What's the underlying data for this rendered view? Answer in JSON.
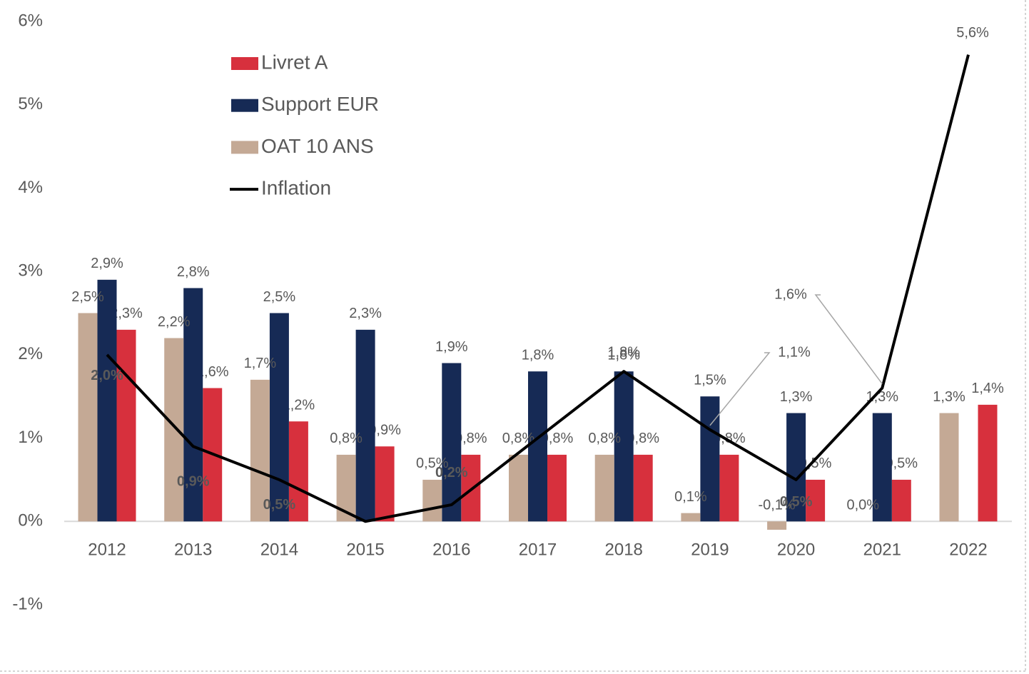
{
  "chart_data": {
    "type": "bar",
    "categories": [
      "2012",
      "2013",
      "2014",
      "2015",
      "2016",
      "2017",
      "2018",
      "2019",
      "2020",
      "2021",
      "2022"
    ],
    "series": [
      {
        "name": "Livret A",
        "type": "bar",
        "color": "#d7303d",
        "values": [
          2.3,
          1.6,
          1.2,
          0.9,
          0.8,
          0.8,
          0.8,
          0.8,
          0.5,
          0.5,
          1.4
        ],
        "value_labels": [
          "2,3%",
          "1,6%",
          "1,2%",
          "0,9%",
          "0,8%",
          "0,8%",
          "0,8%",
          "0,8%",
          "0,5%",
          "0,5%",
          "1,4%"
        ]
      },
      {
        "name": "Support EUR",
        "type": "bar",
        "color": "#162a55",
        "values": [
          2.9,
          2.8,
          2.5,
          2.3,
          1.9,
          1.8,
          1.8,
          1.5,
          1.3,
          1.3,
          null
        ],
        "value_labels": [
          "2,9%",
          "2,8%",
          "2,5%",
          "2,3%",
          "1,9%",
          "1,8%",
          "1,8%",
          "1,5%",
          "1,3%",
          "1,3%",
          null
        ]
      },
      {
        "name": "OAT 10 ANS",
        "type": "bar",
        "color": "#c4a995",
        "values": [
          2.5,
          2.2,
          1.7,
          0.8,
          0.5,
          0.8,
          0.8,
          0.1,
          -0.1,
          0.0,
          1.3
        ],
        "value_labels": [
          "2,5%",
          "2,2%",
          "1,7%",
          "0,8%",
          "0,5%",
          "0,8%",
          "0,8%",
          "0,1%",
          "-0,1%",
          "0,0%",
          "1,3%"
        ]
      },
      {
        "name": "Inflation",
        "type": "line",
        "color": "#000000",
        "values": [
          2.0,
          0.9,
          0.5,
          0.0,
          0.2,
          1.0,
          1.8,
          1.1,
          0.5,
          1.6,
          5.6
        ],
        "value_labels": [
          "2,0%",
          "0,9%",
          "0,5%",
          null,
          "0,2%",
          null,
          "1,8%",
          "1,1%",
          "0,5%",
          "1,6%",
          "5,6%"
        ]
      }
    ],
    "ylim": [
      -1,
      6
    ],
    "yticks": [
      {
        "value": -1,
        "label": "-1%"
      },
      {
        "value": 0,
        "label": "0%"
      },
      {
        "value": 1,
        "label": "1%"
      },
      {
        "value": 2,
        "label": "2%"
      },
      {
        "value": 3,
        "label": "3%"
      },
      {
        "value": 4,
        "label": "4%"
      },
      {
        "value": 5,
        "label": "5%"
      },
      {
        "value": 6,
        "label": "6%"
      }
    ],
    "grid": false
  }
}
